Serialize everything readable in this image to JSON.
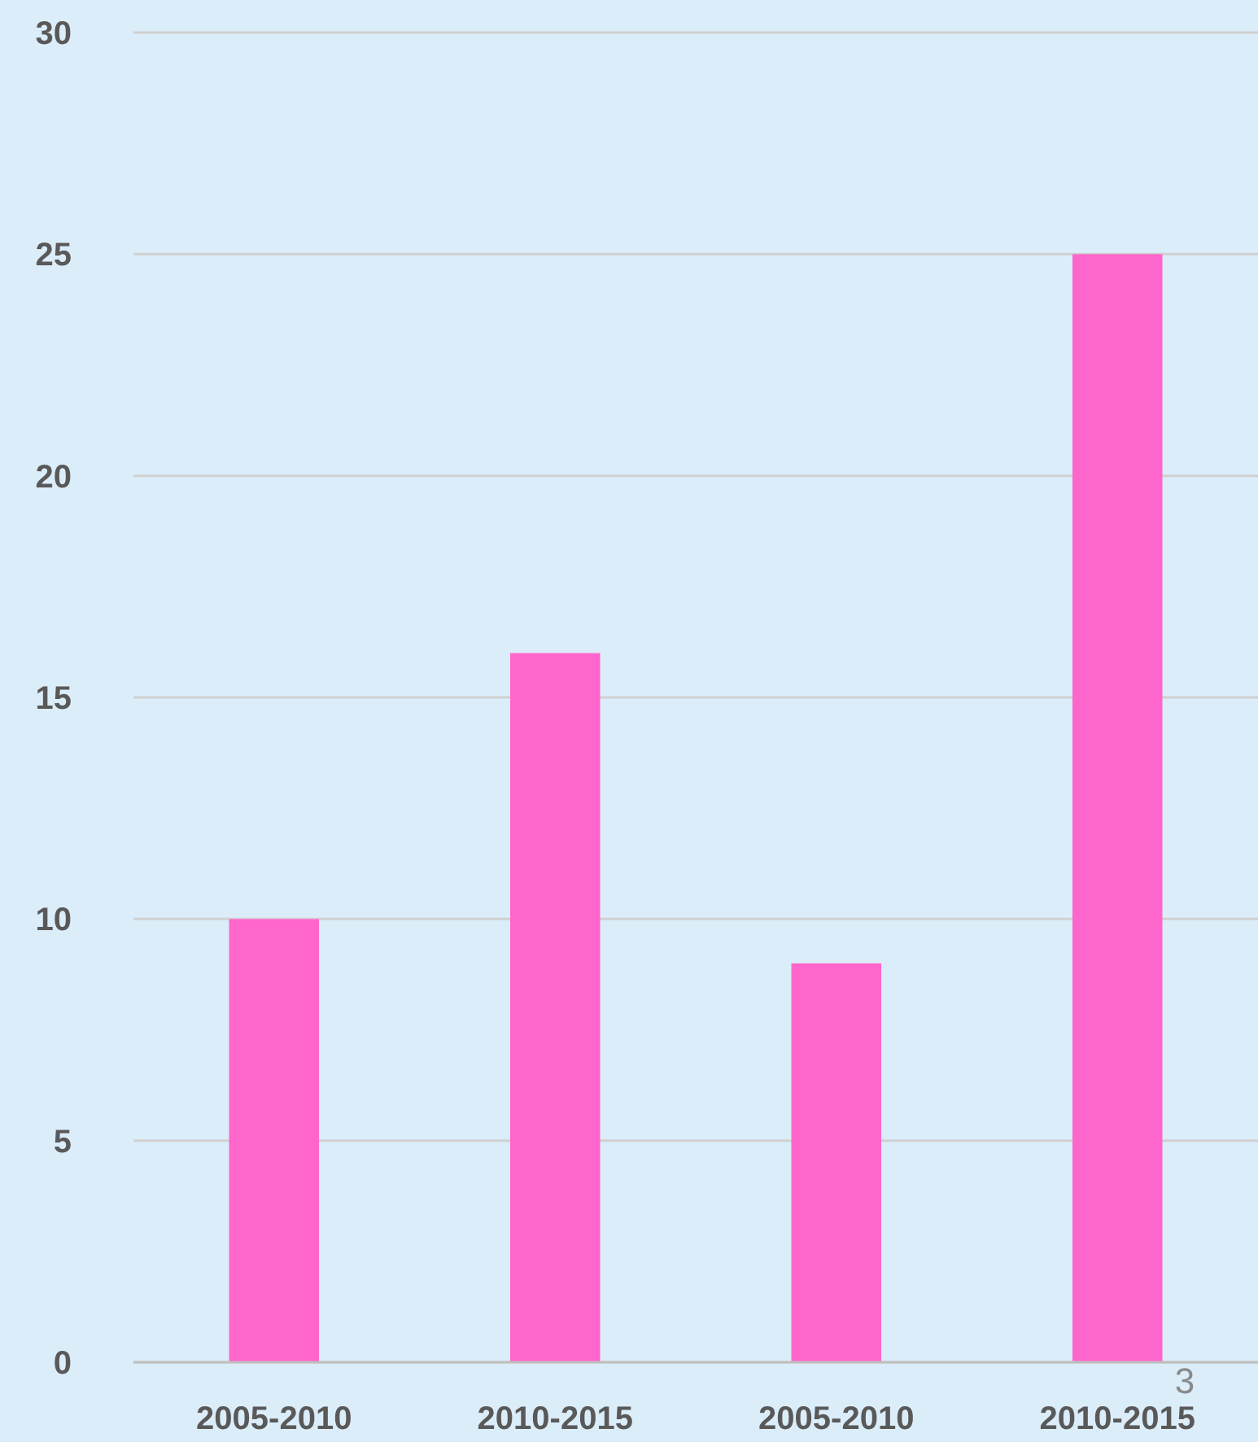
{
  "chart_data": {
    "type": "bar",
    "categories": [
      "2005-2010",
      "2010-2015",
      "2005-2010",
      "2010-2015"
    ],
    "values": [
      10,
      16,
      9,
      25
    ],
    "color": "#ff66cc",
    "ylim": [
      0,
      30
    ],
    "yticks": [
      0,
      5,
      10,
      15,
      20,
      25,
      30
    ],
    "grid": "y",
    "annotations": [
      "3"
    ]
  }
}
